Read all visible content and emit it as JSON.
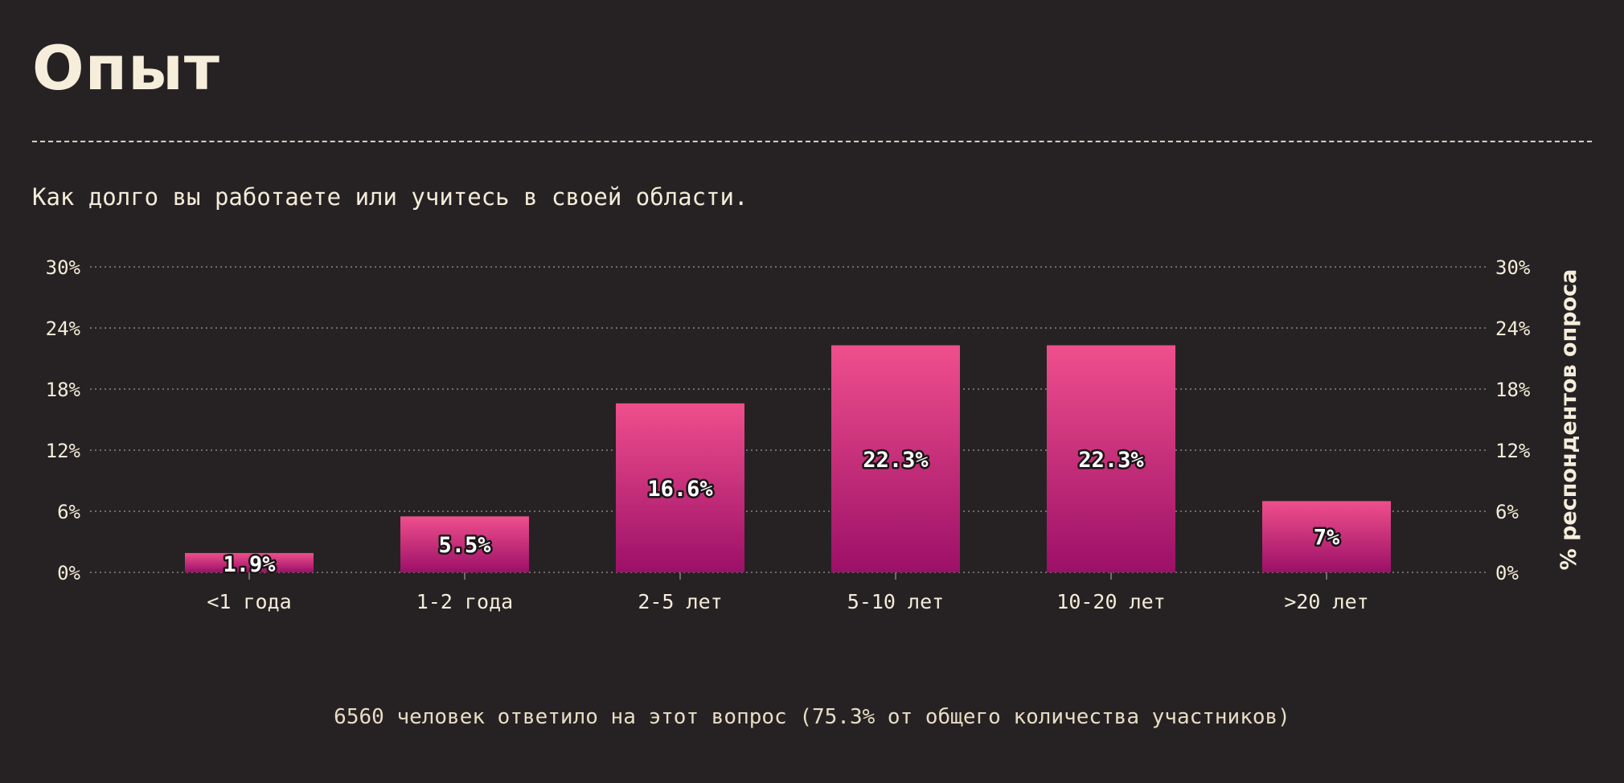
{
  "page": {
    "title": "Опыт",
    "subtitle": "Как долго вы работаете или учитесь в своей области.",
    "footer": "6560 человек ответило на этот вопрос (75.3% от общего количества участников)"
  },
  "colors": {
    "background": "#262224",
    "text": "#f4ecd8",
    "bar_top": "#ef4f8c",
    "bar_bottom": "#9c1068",
    "grid": "#8a8380"
  },
  "chart_data": {
    "type": "bar",
    "categories": [
      "<1 года",
      "1-2 года",
      "2-5 лет",
      "5-10 лет",
      "10-20 лет",
      ">20 лет"
    ],
    "values": [
      1.9,
      5.5,
      16.6,
      22.3,
      22.3,
      7
    ],
    "value_labels": [
      "1.9%",
      "5.5%",
      "16.6%",
      "22.3%",
      "22.3%",
      "7%"
    ],
    "ylim": [
      0,
      30
    ],
    "yticks": [
      0,
      6,
      12,
      18,
      24,
      30
    ],
    "ytick_labels": [
      "0%",
      "6%",
      "12%",
      "18%",
      "24%",
      "30%"
    ],
    "ylabel": "% респондентов опроса",
    "grid": true,
    "legend": "none"
  }
}
